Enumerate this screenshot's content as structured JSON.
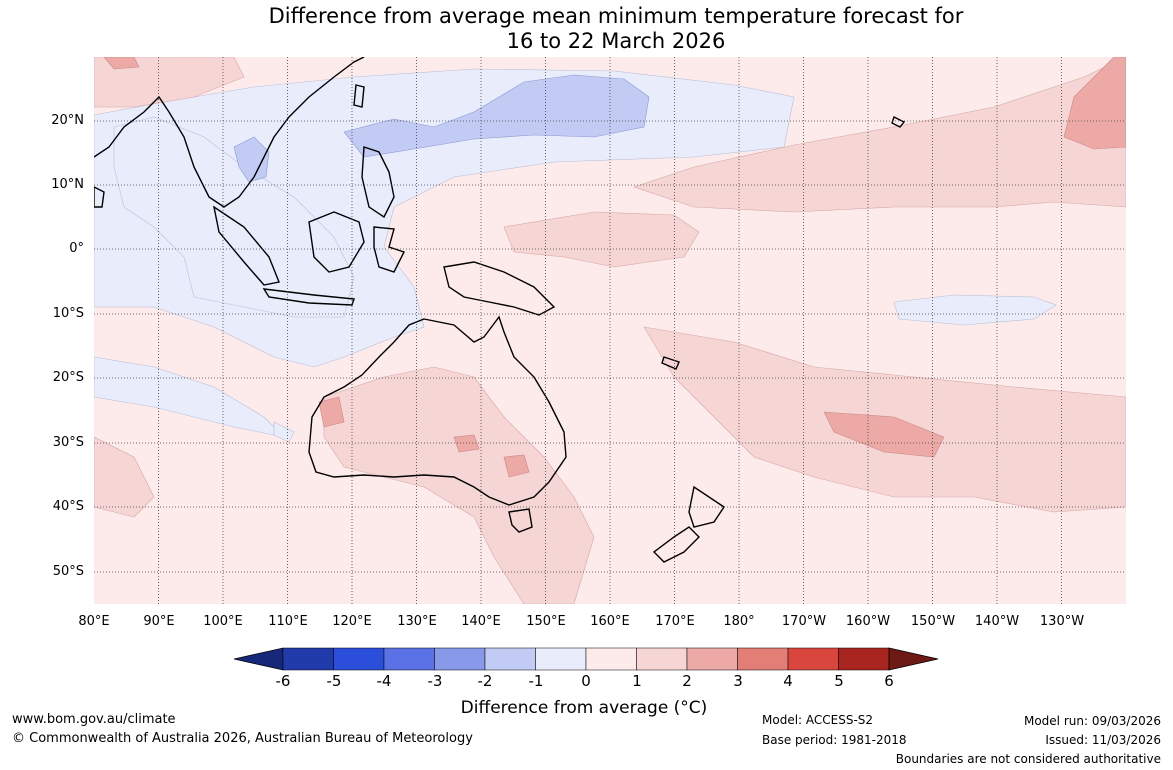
{
  "title": {
    "line1": "Difference from average mean minimum temperature forecast for",
    "line2": "16 to 22 March 2026"
  },
  "map": {
    "lat_labels": [
      "20°N",
      "10°N",
      "0°",
      "10°S",
      "20°S",
      "30°S",
      "40°S",
      "50°S"
    ],
    "lon_labels": [
      "80°E",
      "90°E",
      "100°E",
      "110°E",
      "120°E",
      "130°E",
      "140°E",
      "150°E",
      "160°E",
      "170°E",
      "180°",
      "170°W",
      "160°W",
      "150°W",
      "140°W",
      "130°W"
    ],
    "background_color": "#fcebea"
  },
  "colorbar": {
    "ticks": [
      "-6",
      "-5",
      "-4",
      "-3",
      "-2",
      "-1",
      "0",
      "1",
      "2",
      "3",
      "4",
      "5",
      "6"
    ],
    "colors": [
      "#17287a",
      "#223bab",
      "#2b4fdb",
      "#5a72e6",
      "#8899ea",
      "#c2cbf4",
      "#e9edfb",
      "#fcebea",
      "#f6d5d5",
      "#eca9a6",
      "#e37e76",
      "#d9463e",
      "#a8261f",
      "#6e1a14"
    ],
    "title": "Difference from average (°C)"
  },
  "footer": {
    "website": "www.bom.gov.au/climate",
    "copyright": "© Commonwealth of Australia 2026, Australian Bureau of Meteorology",
    "model": "Model: ACCESS-S2",
    "base_period": "Base period: 1981-2018",
    "model_run": "Model run: 09/03/2026",
    "issued": "Issued: 11/03/2026",
    "boundaries": "Boundaries are not considered authoritative"
  }
}
